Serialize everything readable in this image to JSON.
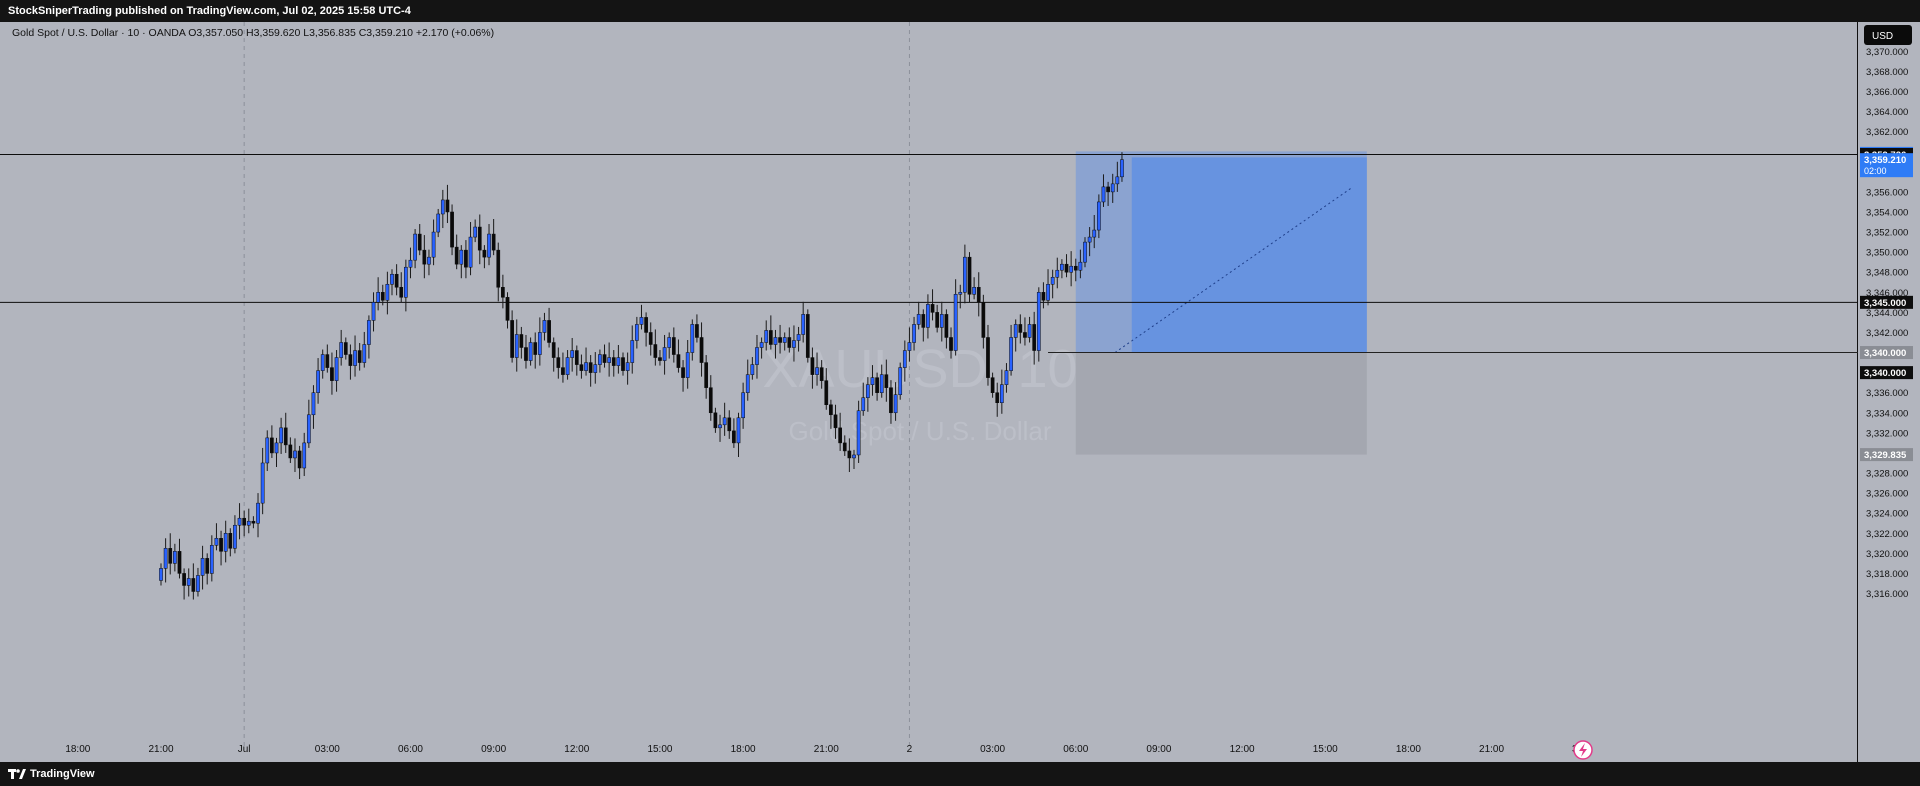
{
  "header": {
    "published": "StockSniperTrading published on TradingView.com, Jul 02, 2025 15:58 UTC-4"
  },
  "symbol_line": "Gold Spot / U.S. Dollar · 10 · OANDA  O3,357.050  H3,359.620  L3,356.835  C3,359.210  +2.170 (+0.06%)",
  "watermark": {
    "symbol": "XAUUSD, 10",
    "description": "Gold Spot / U.S. Dollar"
  },
  "currency_button": "USD",
  "footer": {
    "brand": "TradingView"
  },
  "colors": {
    "background": "#b2b5be",
    "bull": "#2962ff",
    "bear": "#0a0a0a",
    "target_zone": "#5b8ee6",
    "stop_zone": "#a4a7b0",
    "label_dark": "#0d0d0d",
    "label_blue": "#2f7cf6"
  },
  "chart_data": {
    "type": "candlestick",
    "title": "Gold Spot / U.S. Dollar · 10 · OANDA",
    "ylim": [
      3314.0,
      3372.0
    ],
    "y_ticks": [
      3370,
      3368,
      3366,
      3364,
      3362,
      3360,
      3358,
      3356,
      3354,
      3352,
      3350,
      3348,
      3346,
      3344,
      3342,
      3340,
      3338,
      3336,
      3334,
      3332,
      3330,
      3328,
      3326,
      3324,
      3322,
      3320,
      3318,
      3316
    ],
    "x_ticks": [
      {
        "label": "18:00",
        "t": -18
      },
      {
        "label": "21:00",
        "t": 0
      },
      {
        "label": "Jul",
        "t": 18
      },
      {
        "label": "03:00",
        "t": 36
      },
      {
        "label": "06:00",
        "t": 54
      },
      {
        "label": "09:00",
        "t": 72
      },
      {
        "label": "12:00",
        "t": 90
      },
      {
        "label": "15:00",
        "t": 108
      },
      {
        "label": "18:00",
        "t": 126
      },
      {
        "label": "21:00",
        "t": 144
      },
      {
        "label": "2",
        "t": 162
      },
      {
        "label": "03:00",
        "t": 180
      },
      {
        "label": "06:00",
        "t": 198
      },
      {
        "label": "09:00",
        "t": 216
      },
      {
        "label": "12:00",
        "t": 234
      },
      {
        "label": "15:00",
        "t": 252
      },
      {
        "label": "18:00",
        "t": 270
      },
      {
        "label": "21:00",
        "t": 288
      },
      {
        "label": "3",
        "t": 306
      }
    ],
    "session_breaks": [
      18,
      162
    ],
    "horizontal_lines": [
      3359.726,
      3345.0
    ],
    "position": {
      "type": "long",
      "entry": 3340.0,
      "target": 3359.835,
      "stop": 3329.835,
      "t_start": 198,
      "t_end": 261
    },
    "price_labels": [
      {
        "text": "3,359.835",
        "price": 3359.835,
        "style": "blue"
      },
      {
        "text": "3,359.726",
        "price": 3359.726,
        "style": "dark"
      },
      {
        "text": "3,359.210",
        "price": 3359.21,
        "style": "blue",
        "sub": "02:00"
      },
      {
        "text": "3,345.000",
        "price": 3345.0,
        "style": "dark"
      },
      {
        "text": "3,340.000",
        "price": 3340.0,
        "style": "grey"
      },
      {
        "text": "3,340.000",
        "price": 3338.0,
        "style": "dark"
      },
      {
        "text": "3,329.835",
        "price": 3329.835,
        "style": "grey"
      }
    ],
    "candles_key": "close prices of consecutive 10-minute bars starting at 21:00 (Jul 1)",
    "closes": [
      3318.5,
      3320.5,
      3319.0,
      3320.2,
      3318.0,
      3316.8,
      3317.5,
      3316.2,
      3317.8,
      3319.5,
      3318.0,
      3320.8,
      3321.5,
      3320.2,
      3322.0,
      3320.5,
      3322.8,
      3323.5,
      3322.8,
      3323.2,
      3323.0,
      3325.0,
      3329.0,
      3331.5,
      3330.0,
      3331.0,
      3332.5,
      3330.8,
      3329.5,
      3330.2,
      3328.5,
      3331.0,
      3333.8,
      3336.0,
      3338.2,
      3339.8,
      3338.5,
      3337.2,
      3339.5,
      3341.0,
      3339.8,
      3338.7,
      3340.2,
      3339.0,
      3340.8,
      3343.2,
      3345.0,
      3346.0,
      3345.2,
      3346.8,
      3347.8,
      3346.5,
      3345.5,
      3348.5,
      3349.2,
      3351.8,
      3350.2,
      3348.8,
      3349.5,
      3352.0,
      3353.8,
      3355.2,
      3354.0,
      3350.5,
      3348.8,
      3350.2,
      3348.5,
      3351.5,
      3352.5,
      3350.2,
      3349.5,
      3351.8,
      3350.2,
      3346.5,
      3345.5,
      3343.2,
      3339.5,
      3341.8,
      3340.5,
      3339.2,
      3341.0,
      3339.8,
      3342.0,
      3343.2,
      3341.0,
      3339.5,
      3338.5,
      3337.8,
      3339.5,
      3340.2,
      3338.8,
      3338.2,
      3339.0,
      3338.0,
      3338.8,
      3339.8,
      3339.0,
      3339.5,
      3338.7,
      3339.5,
      3338.2,
      3339.0,
      3341.2,
      3342.8,
      3343.5,
      3342.0,
      3340.8,
      3339.5,
      3339.2,
      3340.5,
      3341.5,
      3339.8,
      3338.5,
      3337.5,
      3340.0,
      3342.8,
      3341.5,
      3339.0,
      3336.5,
      3334.0,
      3332.5,
      3332.8,
      3333.5,
      3332.2,
      3331.0,
      3333.5,
      3336.0,
      3337.8,
      3338.8,
      3340.5,
      3341.0,
      3342.2,
      3340.8,
      3341.5,
      3341.0,
      3341.5,
      3340.5,
      3341.2,
      3341.8,
      3343.8,
      3339.5,
      3337.8,
      3338.5,
      3337.2,
      3334.8,
      3333.8,
      3332.5,
      3331.0,
      3330.2,
      3329.5,
      3329.8,
      3334.2,
      3335.5,
      3336.8,
      3337.5,
      3336.0,
      3337.8,
      3336.5,
      3334.0,
      3335.8,
      3338.5,
      3340.2,
      3341.0,
      3342.8,
      3343.8,
      3342.5,
      3344.8,
      3344.0,
      3342.5,
      3343.8,
      3341.5,
      3340.2,
      3345.8,
      3346.0,
      3349.5,
      3345.8,
      3346.5,
      3345.0,
      3341.5,
      3337.5,
      3336.0,
      3335.0,
      3336.8,
      3338.2,
      3341.5,
      3342.8,
      3342.0,
      3341.5,
      3342.8,
      3340.2,
      3346.0,
      3345.2,
      3346.8,
      3347.5,
      3348.2,
      3348.8,
      3348.0,
      3348.6,
      3348.2,
      3349.0,
      3351.0,
      3351.5,
      3352.2,
      3355.0,
      3356.5,
      3356.0,
      3356.8,
      3357.5,
      3359.21
    ]
  }
}
